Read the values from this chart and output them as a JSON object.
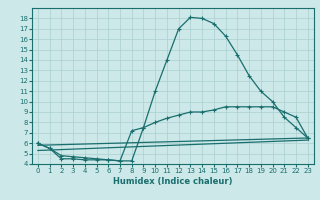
{
  "xlabel": "Humidex (Indice chaleur)",
  "bg_color": "#cce8e8",
  "grid_color": "#aacfcf",
  "line_color": "#1a6e6e",
  "xlim": [
    -0.5,
    23.5
  ],
  "ylim": [
    4,
    19
  ],
  "xticks": [
    0,
    1,
    2,
    3,
    4,
    5,
    6,
    7,
    8,
    9,
    10,
    11,
    12,
    13,
    14,
    15,
    16,
    17,
    18,
    19,
    20,
    21,
    22,
    23
  ],
  "yticks": [
    4,
    5,
    6,
    7,
    8,
    9,
    10,
    11,
    12,
    13,
    14,
    15,
    16,
    17,
    18
  ],
  "curve1_x": [
    0,
    1,
    2,
    3,
    4,
    5,
    6,
    7,
    8,
    9,
    10,
    11,
    12,
    13,
    14,
    15,
    16,
    17,
    18,
    19,
    20,
    21,
    22,
    23
  ],
  "curve1_y": [
    6.0,
    5.5,
    4.5,
    4.5,
    4.4,
    4.4,
    4.4,
    4.3,
    4.3,
    7.5,
    11.0,
    14.0,
    17.0,
    18.1,
    18.0,
    17.5,
    16.3,
    14.5,
    12.5,
    11.0,
    10.0,
    8.5,
    7.5,
    6.5
  ],
  "curve2_x": [
    0,
    1,
    2,
    3,
    4,
    5,
    6,
    7,
    8,
    9,
    10,
    11,
    12,
    13,
    14,
    15,
    16,
    17,
    18,
    19,
    20,
    21,
    22,
    23
  ],
  "curve2_y": [
    6.0,
    5.5,
    4.8,
    4.7,
    4.6,
    4.5,
    4.4,
    4.3,
    7.2,
    7.5,
    8.0,
    8.4,
    8.7,
    9.0,
    9.0,
    9.2,
    9.5,
    9.5,
    9.5,
    9.5,
    9.5,
    9.0,
    8.5,
    6.5
  ],
  "curve3_x": [
    0,
    23
  ],
  "curve3_y": [
    5.8,
    6.5
  ],
  "curve4_x": [
    0,
    23
  ],
  "curve4_y": [
    5.3,
    6.3
  ]
}
